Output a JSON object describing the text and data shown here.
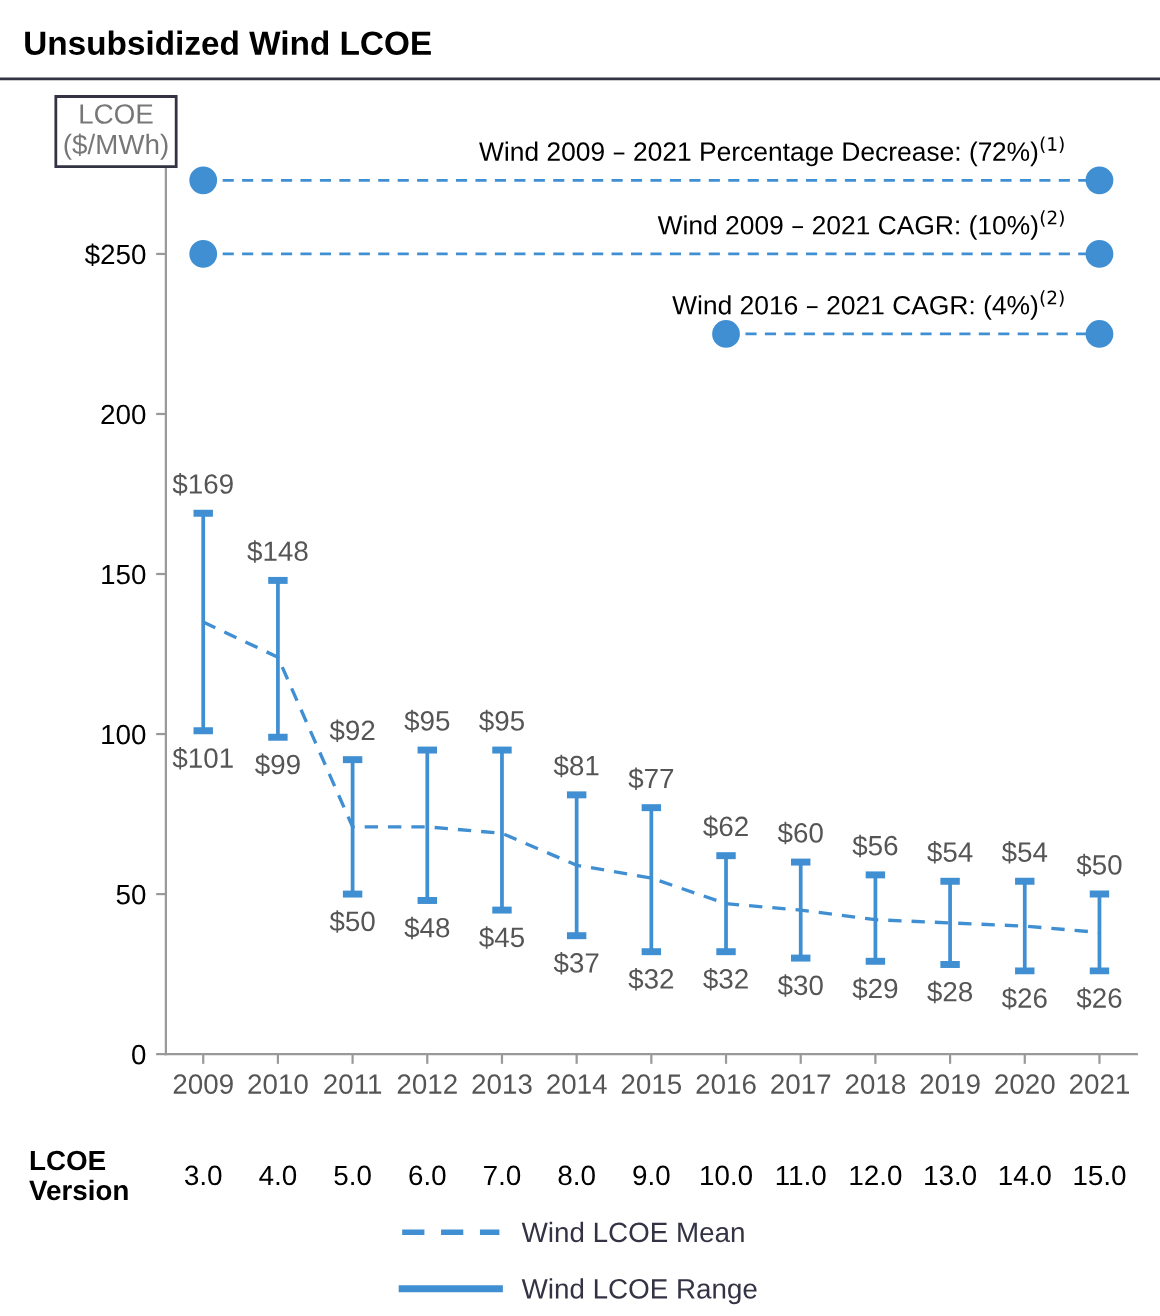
{
  "chart_data": {
    "type": "line",
    "title": "Unsubsidized Wind LCOE",
    "ylabel": "LCOE\n($/MWh)",
    "categories": [
      "2009",
      "2010",
      "2011",
      "2012",
      "2013",
      "2014",
      "2015",
      "2016",
      "2017",
      "2018",
      "2019",
      "2020",
      "2021"
    ],
    "series": [
      {
        "name": "Wind 2009 – 2021 Percentage Decrease: (72%)$^{(1)}$",
        "marker": "circle",
        "line_style": "dashed",
        "color": "#3f8fd2",
        "values": [
          273,
          null,
          null,
          null,
          null,
          null,
          null,
          null,
          null,
          null,
          null,
          null,
          273
        ]
      },
      {
        "name": "Wind 2009 – 2021 CAGR: (10%)$^{(2)}$",
        "marker": "circle",
        "line_style": "dashed",
        "color": "#3f8fd2",
        "values": [
          250,
          null,
          null,
          null,
          null,
          null,
          null,
          null,
          null,
          null,
          null,
          null,
          250
        ]
      },
      {
        "name": "Wind 2016 – 2021 CAGR: (4%)$^{(2)}$",
        "marker": "circle",
        "line_style": "dashed",
        "color": "#3f8fd2",
        "values": [
          null,
          null,
          null,
          null,
          null,
          null,
          null,
          225,
          null,
          null,
          null,
          null,
          225
        ]
      },
      {
        "name": "Wind LCOE Mean",
        "line_style": "dashed",
        "color": "#3f8fd2",
        "values": [
          135,
          124,
          71,
          71,
          69,
          59,
          55,
          47,
          45,
          42,
          41,
          40,
          38
        ]
      },
      {
        "name": "Wind LCOE Range",
        "type": "bar",
        "color": "#3f8fd2",
        "base": [
          101,
          99,
          50,
          48,
          45,
          37,
          32,
          32,
          30,
          29,
          28,
          26,
          26
        ],
        "values": [
          68,
          49,
          42,
          47,
          50,
          44,
          45,
          30,
          30,
          27,
          26,
          28,
          24
        ]
      }
    ],
    "ylim": [
      0,
      280
    ],
    "yticks": [
      0,
      50,
      100,
      150,
      200,
      {
        "value": 250,
        "label": "$250"
      }
    ],
    "grid": false,
    "legend": "bottom",
    "annotations": [
      "LCOE\nVersion",
      "3.0",
      "4.0",
      "5.0",
      "6.0",
      "7.0",
      "8.0",
      "9.0",
      "10.0",
      "11.0",
      "12.0",
      "13.0",
      "14.0",
      "15.0",
      {
        "text": "$169",
        "x": "2009",
        "y": 169
      },
      {
        "text": "$148",
        "x": "2010",
        "y": 148
      },
      {
        "text": "$92",
        "x": "2011",
        "y": 92
      },
      {
        "text": "$95",
        "x": "2012",
        "y": 95
      },
      {
        "text": "$95",
        "x": "2013",
        "y": 95
      },
      {
        "text": "$81",
        "x": "2014",
        "y": 81
      },
      {
        "text": "$77",
        "x": "2015",
        "y": 77
      },
      {
        "text": "$62",
        "x": "2016",
        "y": 62
      },
      {
        "text": "$60",
        "x": "2017",
        "y": 60
      },
      {
        "text": "$56",
        "x": "2018",
        "y": 56
      },
      {
        "text": "$54",
        "x": "2019",
        "y": 54
      },
      {
        "text": "$54",
        "x": "2020",
        "y": 54
      },
      {
        "text": "$50",
        "x": "2021",
        "y": 50
      },
      {
        "text": "$101",
        "x": "2009",
        "y": 101
      },
      {
        "text": "$99",
        "x": "2010",
        "y": 99
      },
      {
        "text": "$50",
        "x": "2011",
        "y": 50
      },
      {
        "text": "$48",
        "x": "2012",
        "y": 48
      },
      {
        "text": "$45",
        "x": "2013",
        "y": 45
      },
      {
        "text": "$37",
        "x": "2014",
        "y": 37
      },
      {
        "text": "$32",
        "x": "2015",
        "y": 32
      },
      {
        "text": "$32",
        "x": "2016",
        "y": 32
      },
      {
        "text": "$30",
        "x": "2017",
        "y": 30
      },
      {
        "text": "$29",
        "x": "2018",
        "y": 29
      },
      {
        "text": "$28",
        "x": "2019",
        "y": 28
      },
      {
        "text": "$26",
        "x": "2020",
        "y": 26
      },
      {
        "text": "$26",
        "x": "2021",
        "y": 26
      }
    ]
  }
}
